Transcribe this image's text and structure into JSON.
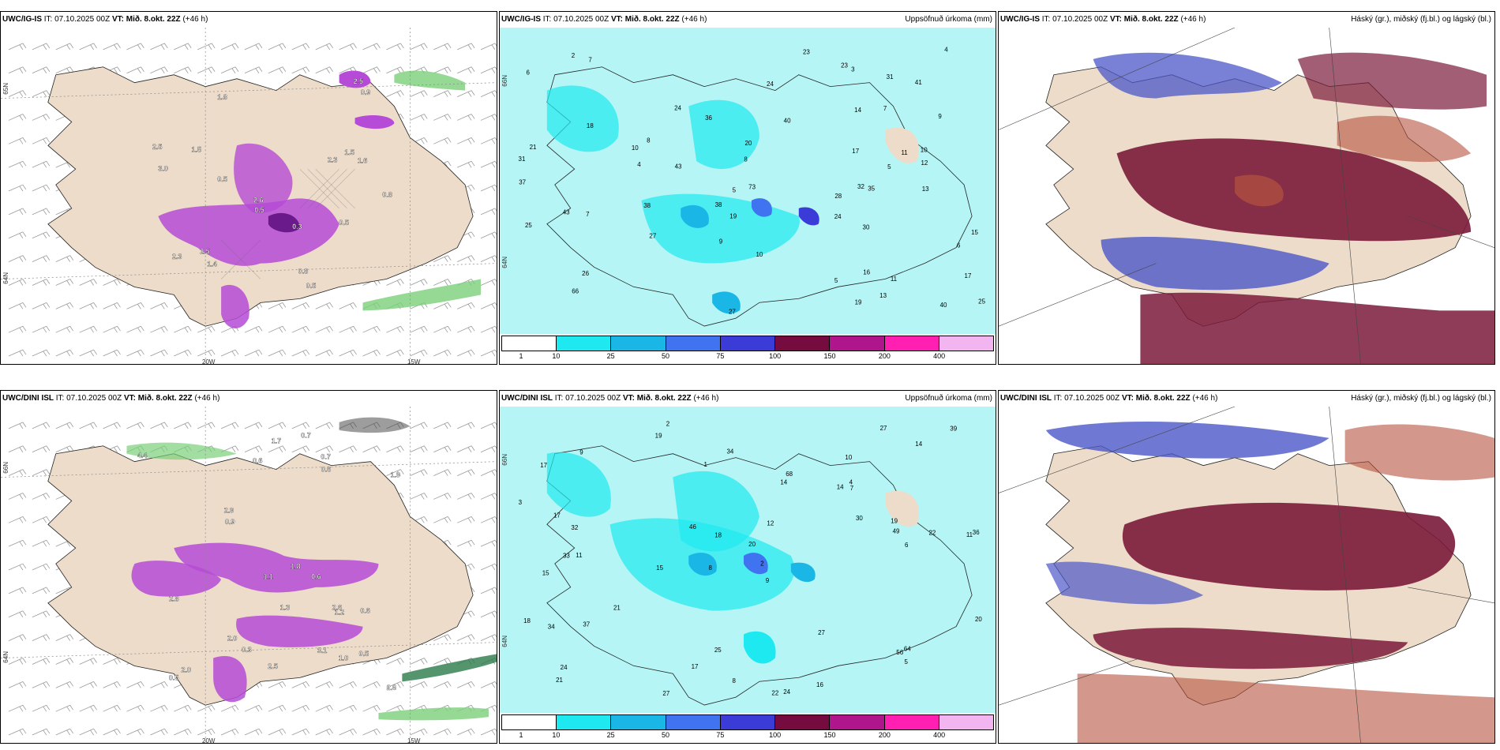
{
  "colors": {
    "land": "#eddcc9",
    "sea_precip": "#b6f5f5",
    "purple": "#b54bd6",
    "green": "#7ad07a",
    "maroon": "#7a1a3a",
    "blue": "#4b57c8",
    "brick": "#b5523f"
  },
  "rows": [
    {
      "model": "UWC/IG-IS",
      "panels": [
        {
          "source": "UWC/IG-IS",
          "it": "IT: 07.10.2025 00Z",
          "vt_label": "VT: Mið. 8.okt. 22Z",
          "lead": "(+46 h)",
          "right_title": "",
          "kind": "precip-wind",
          "lon_labels": [
            "20W",
            "15W"
          ],
          "lat_labels": [
            "65N",
            "64N"
          ],
          "values": [
            "0.5",
            "1.8",
            "2.5",
            "1.5",
            "1.5",
            "0.8",
            "0.8",
            "0.5",
            "0.5",
            "1.4",
            "2.3",
            "2.5",
            "2.6",
            "0.3",
            "2.3",
            "2.5",
            "3.0",
            "0.9",
            "0.5",
            "1.6"
          ]
        },
        {
          "source": "UWC/IG-IS",
          "it": "IT: 07.10.2025 00Z",
          "vt_label": "VT: Mið. 8.okt. 22Z",
          "lead": "(+46 h)",
          "right_title": "Uppsöfnuð úrkoma (mm)",
          "kind": "accum",
          "lat_labels": [
            "66N",
            "64N"
          ],
          "values": [
            "24",
            "15",
            "11",
            "6",
            "5",
            "7",
            "10",
            "20",
            "17",
            "13",
            "32",
            "28",
            "25",
            "30",
            "27",
            "40",
            "41",
            "43",
            "31",
            "36",
            "19",
            "37",
            "17",
            "23",
            "12",
            "26",
            "18",
            "14",
            "25",
            "7",
            "9",
            "23",
            "21",
            "16",
            "43",
            "66",
            "40",
            "73",
            "35",
            "19",
            "38",
            "38",
            "24",
            "27",
            "31",
            "24",
            "4",
            "8",
            "5",
            "7",
            "9",
            "10",
            "8",
            "11",
            "6",
            "4",
            "3",
            "2",
            "5",
            "10",
            "13"
          ],
          "colorbar_ticks": [
            "1",
            "10",
            "25",
            "50",
            "75",
            "100",
            "150",
            "200",
            "400"
          ],
          "colorbar_colors": [
            "#ffffff",
            "#1ee9f0",
            "#1ab7e6",
            "#3f73f0",
            "#3b3bd8",
            "#760b40",
            "#b0168c",
            "#ff1fb0",
            "#f2b5f0"
          ]
        },
        {
          "source": "UWC/IG-IS",
          "it": "IT: 07.10.2025 00Z",
          "vt_label": "VT: Mið. 8.okt. 22Z",
          "lead": "(+46 h)",
          "right_title": "Háský (gr.), miðský (fj.bl.) og lágský (bl.)",
          "kind": "cloud"
        }
      ]
    },
    {
      "model": "UWC/DINI ISL",
      "panels": [
        {
          "source": "UWC/DINI ISL",
          "it": "IT: 07.10.2025 00Z",
          "vt_label": "VT: Mið. 8.okt. 22Z",
          "lead": "(+46 h)",
          "right_title": "",
          "kind": "precip-wind",
          "lon_labels": [
            "20W",
            "15W"
          ],
          "lat_labels": [
            "66N",
            "64N"
          ],
          "values": [
            "0.5",
            "0.6",
            "1.8",
            "1.3",
            "0.6",
            "0.7",
            "0.5",
            "0.7",
            "1.0",
            "2.0",
            "2.6",
            "0.9",
            "0.3",
            "1.7",
            "3.1",
            "2.9",
            "2.6",
            "2.8",
            "1.1",
            "1.9",
            "4.4",
            "2.0",
            "2.5",
            "0.6",
            "1.2",
            "0.6"
          ]
        },
        {
          "source": "UWC/DINI ISL",
          "it": "IT: 07.10.2025 00Z",
          "vt_label": "VT: Mið. 8.okt. 22Z",
          "lead": "(+46 h)",
          "right_title": "Uppsöfnuð úrkoma (mm)",
          "kind": "accum",
          "lat_labels": [
            "66N",
            "64N"
          ],
          "values": [
            "2",
            "10",
            "11",
            "8",
            "9",
            "11",
            "17",
            "14",
            "15",
            "14",
            "20",
            "21",
            "19",
            "15",
            "22",
            "24",
            "25",
            "27",
            "30",
            "21",
            "32",
            "33",
            "36",
            "22",
            "18",
            "17",
            "18",
            "49",
            "64",
            "34",
            "56",
            "68",
            "37",
            "46",
            "27",
            "20",
            "19",
            "17",
            "39",
            "34",
            "24",
            "27",
            "16",
            "9",
            "8",
            "7",
            "5",
            "4",
            "3",
            "2",
            "1",
            "6",
            "12",
            "14"
          ],
          "colorbar_ticks": [
            "1",
            "10",
            "25",
            "50",
            "75",
            "100",
            "150",
            "200",
            "400"
          ],
          "colorbar_colors": [
            "#ffffff",
            "#1ee9f0",
            "#1ab7e6",
            "#3f73f0",
            "#3b3bd8",
            "#760b40",
            "#b0168c",
            "#ff1fb0",
            "#f2b5f0"
          ]
        },
        {
          "source": "UWC/DINI ISL",
          "it": "IT: 07.10.2025 00Z",
          "vt_label": "VT: Mið. 8.okt. 22Z",
          "lead": "(+46 h)",
          "right_title": "Háský (gr.), miðský (fj.bl.) og lágský (bl.)",
          "kind": "cloud"
        }
      ]
    }
  ]
}
